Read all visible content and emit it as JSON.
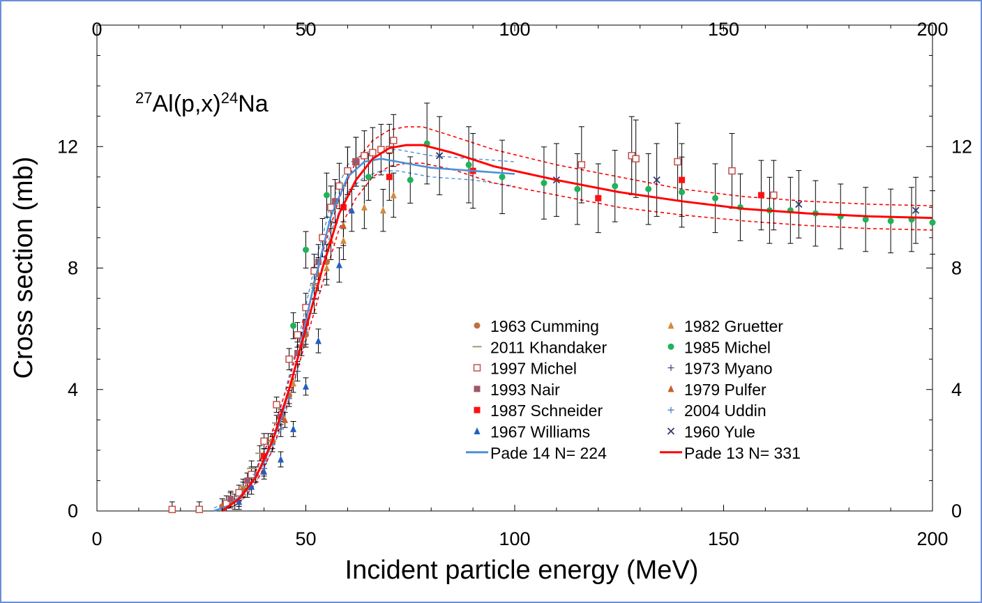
{
  "chart_data": {
    "type": "scatter",
    "title": "",
    "annotation": {
      "mass1": "27",
      "element1": "Al(p,x)",
      "mass2": "24",
      "element2": "Na"
    },
    "xlabel": "Incident particle energy (MeV)",
    "ylabel": "Cross section (mb)",
    "xlim": [
      0,
      200
    ],
    "ylim": [
      0,
      16
    ],
    "xticks": [
      "0",
      "50",
      "100",
      "150",
      "200"
    ],
    "yticks": [
      "0",
      "4",
      "8",
      "12"
    ],
    "series": [
      {
        "name": "1963 Cumming",
        "marker": "circle",
        "color": "#c0703a",
        "x": [
          30,
          32,
          35,
          38,
          42,
          46,
          50,
          55
        ],
        "y": [
          0.15,
          0.35,
          0.7,
          1.2,
          2.3,
          3.8,
          5.8,
          8.2
        ]
      },
      {
        "name": "1982 Gruetter",
        "marker": "triangle",
        "color": "#d58a3a",
        "x": [
          47,
          52,
          55,
          59,
          64,
          68.5,
          71
        ],
        "y": [
          4.2,
          7.5,
          8.0,
          8.9,
          10.0,
          9.9,
          10.4
        ]
      },
      {
        "name": "2011 Khandaker",
        "marker": "dash",
        "color": "#a09a70",
        "x": [
          33,
          35,
          37,
          39,
          41,
          43
        ],
        "y": [
          0.3,
          0.8,
          1.4,
          1.9,
          2.3,
          2.9
        ]
      },
      {
        "name": "1985 Michel",
        "marker": "circle",
        "color": "#1fb35a",
        "x": [
          47,
          50,
          55,
          60,
          65,
          75,
          79,
          89,
          97,
          107,
          115,
          124,
          132,
          140,
          148,
          154,
          161,
          166,
          172,
          178,
          184,
          190,
          195,
          200
        ],
        "y": [
          6.1,
          8.6,
          10.4,
          11.2,
          11.0,
          10.9,
          12.1,
          11.4,
          11.0,
          10.8,
          10.6,
          10.7,
          10.6,
          10.5,
          10.3,
          10.0,
          9.9,
          9.9,
          9.8,
          9.7,
          9.6,
          9.55,
          9.6,
          9.5
        ]
      },
      {
        "name": "1997 Michel",
        "marker": "open-square",
        "color": "#c0504d",
        "x": [
          18,
          24.5,
          31,
          34,
          37,
          40,
          43,
          46,
          48,
          50,
          52,
          54,
          56,
          58,
          60,
          62,
          64,
          66,
          68,
          70,
          71,
          116,
          128,
          129,
          139,
          152,
          162
        ],
        "y": [
          0.05,
          0.05,
          0.25,
          0.6,
          1.2,
          2.3,
          3.5,
          5.0,
          5.8,
          6.7,
          7.9,
          9.0,
          10.0,
          10.7,
          11.2,
          11.5,
          11.7,
          11.8,
          11.9,
          11.9,
          12.2,
          11.4,
          11.7,
          11.6,
          11.5,
          11.2,
          10.4
        ]
      },
      {
        "name": "1973 Myano",
        "marker": "plus",
        "color": "#404a80",
        "x": [
          36,
          40,
          44,
          48,
          52
        ],
        "y": [
          0.7,
          1.4,
          2.7,
          4.6,
          7.0
        ]
      },
      {
        "name": "1993 Nair",
        "marker": "filled-square-x",
        "color": "#c0504d",
        "x": [
          32,
          36,
          40,
          44,
          48,
          53,
          57,
          62
        ],
        "y": [
          0.4,
          1.0,
          1.8,
          3.1,
          5.2,
          8.2,
          10.2,
          11.5
        ]
      },
      {
        "name": "1979 Pulfer",
        "marker": "triangle",
        "color": "#c8602a",
        "x": [
          45,
          49,
          53,
          56,
          59
        ],
        "y": [
          3.0,
          5.5,
          7.8,
          8.9,
          9.4
        ]
      },
      {
        "name": "1987 Schneider",
        "marker": "filled-square",
        "color": "#ff1010",
        "x": [
          40,
          50,
          59,
          70,
          90,
          120,
          140,
          159
        ],
        "y": [
          1.8,
          6.2,
          10.0,
          11.0,
          11.2,
          10.3,
          10.9,
          10.4
        ]
      },
      {
        "name": "2004 Uddin",
        "marker": "plus",
        "color": "#4a7fc8",
        "x": [
          34,
          38,
          42,
          46,
          50
        ],
        "y": [
          0.4,
          1.2,
          2.2,
          3.7,
          5.9
        ]
      },
      {
        "name": "1967 Williams",
        "marker": "triangle",
        "color": "#2060c0",
        "x": [
          34,
          37,
          40,
          44,
          47,
          50,
          53,
          58,
          61
        ],
        "y": [
          0.3,
          0.8,
          1.3,
          1.7,
          2.7,
          4.1,
          5.6,
          8.1,
          9.9
        ]
      },
      {
        "name": "1960 Yule",
        "marker": "x",
        "color": "#303a70",
        "x": [
          82,
          110,
          134,
          168,
          196
        ],
        "y": [
          11.7,
          10.9,
          10.9,
          10.1,
          9.9
        ]
      }
    ],
    "fits": [
      {
        "name": "Pade 14  N= 224",
        "color": "#4a90d9",
        "x": [
          28,
          32,
          36,
          40,
          44,
          48,
          52,
          56,
          60,
          64,
          68,
          72,
          76,
          80,
          90,
          100
        ],
        "y": [
          0,
          0.2,
          0.7,
          1.6,
          3.0,
          5.0,
          7.5,
          9.7,
          11.0,
          11.5,
          11.6,
          11.5,
          11.4,
          11.3,
          11.2,
          11.1
        ],
        "band_upper": [
          0.1,
          0.3,
          0.9,
          1.9,
          3.4,
          5.5,
          8.0,
          10.1,
          11.4,
          11.8,
          11.9,
          11.9,
          11.8,
          11.7,
          11.6,
          11.5
        ],
        "band_lower": [
          0,
          0.1,
          0.5,
          1.4,
          2.7,
          4.6,
          7.0,
          9.2,
          10.5,
          11.0,
          11.2,
          11.2,
          11.1,
          11.0,
          10.9,
          10.7
        ]
      },
      {
        "name": "Pade 13 N= 331",
        "color": "#ff0000",
        "x": [
          30,
          34,
          38,
          42,
          46,
          50,
          54,
          58,
          62,
          66,
          70,
          74,
          78,
          85,
          95,
          110,
          125,
          140,
          155,
          170,
          185,
          200
        ],
        "y": [
          0,
          0.4,
          1.1,
          2.3,
          4.0,
          6.0,
          8.0,
          9.8,
          10.9,
          11.6,
          11.95,
          12.05,
          12.05,
          11.8,
          11.35,
          10.9,
          10.5,
          10.2,
          9.95,
          9.8,
          9.7,
          9.65
        ],
        "band_upper": [
          0.05,
          0.55,
          1.3,
          2.6,
          4.3,
          6.4,
          8.5,
          10.3,
          11.5,
          12.2,
          12.55,
          12.65,
          12.65,
          12.35,
          11.9,
          11.4,
          11.0,
          10.6,
          10.35,
          10.2,
          10.1,
          10.05
        ],
        "band_lower": [
          0,
          0.25,
          0.9,
          2.0,
          3.7,
          5.6,
          7.5,
          9.3,
          10.3,
          11.0,
          11.35,
          11.45,
          11.45,
          11.25,
          10.8,
          10.4,
          10.0,
          9.75,
          9.55,
          9.4,
          9.3,
          9.25
        ]
      }
    ]
  }
}
